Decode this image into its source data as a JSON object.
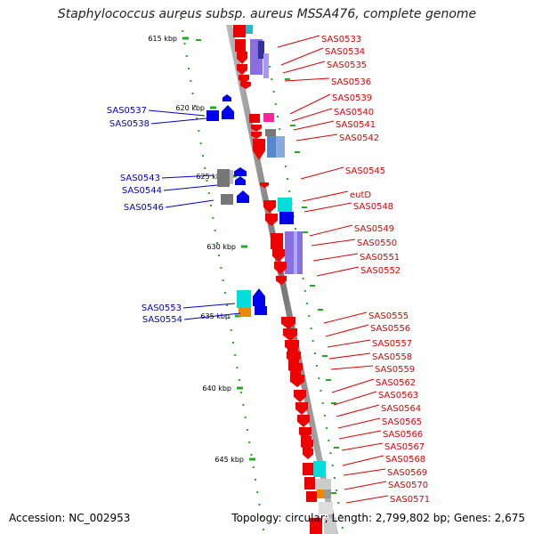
{
  "title": "Staphylococcus aureus subsp. aureus MSSA476, complete genome",
  "footer": {
    "accession": "Accession: NC_002953",
    "topology": "Topology: circular; Length: 2,799,802 bp; Genes: 2,675"
  },
  "scale_ticks": [
    "615 kbp",
    "620 kbp",
    "625 kbp",
    "630 kbp",
    "635 kbp",
    "640 kbp",
    "645 kbp"
  ],
  "genes_right": [
    "SAS0533",
    "SAS0534",
    "SAS0535",
    "SAS0536",
    "SAS0539",
    "SAS0540",
    "SAS0541",
    "SAS0542",
    "SAS0545",
    "eutD",
    "SAS0548",
    "SAS0549",
    "SAS0550",
    "SAS0551",
    "SAS0552",
    "SAS0555",
    "SAS0556",
    "SAS0557",
    "SAS0558",
    "SAS0559",
    "SAS0562",
    "SAS0563",
    "SAS0564",
    "SAS0565",
    "SAS0566",
    "SAS0567",
    "SAS0568",
    "SAS0569",
    "SAS0570",
    "SAS0571"
  ],
  "genes_left": [
    "SAS0537",
    "SAS0538",
    "SAS0543",
    "SAS0544",
    "SAS0546",
    "SAS0553",
    "SAS0554"
  ],
  "colors": {
    "forward_strand": "#ee0000",
    "reverse_strand": "#0000ee",
    "tick_mark": "#22aa22",
    "backbone": "#999999",
    "label_red": "#dd0000",
    "label_blue": "#0000cc"
  }
}
